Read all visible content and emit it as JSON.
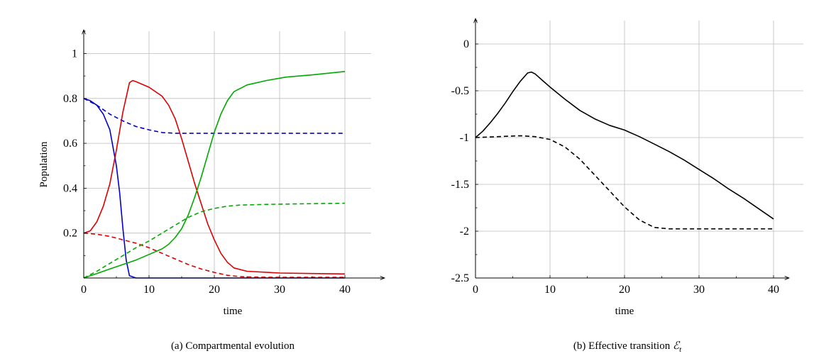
{
  "chart_data": [
    {
      "type": "line",
      "caption": "(a) Compartmental evolution",
      "xlabel": "time",
      "ylabel": "Population",
      "xlim": [
        0,
        44
      ],
      "ylim": [
        0,
        1.1
      ],
      "xticks": [
        0,
        10,
        20,
        30,
        40
      ],
      "yticks": [
        0.2,
        0.4,
        0.6,
        0.8,
        1
      ],
      "ytick_labels": [
        "0.2",
        "0.4",
        "0.6",
        "0.8",
        "1"
      ],
      "grid": true,
      "series": [
        {
          "color": "#0000cc",
          "dash": "solid",
          "points": [
            [
              0,
              0.8
            ],
            [
              1,
              0.79
            ],
            [
              2,
              0.77
            ],
            [
              3,
              0.73
            ],
            [
              4,
              0.66
            ],
            [
              5,
              0.5
            ],
            [
              5.5,
              0.38
            ],
            [
              6,
              0.22
            ],
            [
              6.5,
              0.08
            ],
            [
              7,
              0.01
            ],
            [
              8,
              0
            ],
            [
              40,
              0
            ]
          ]
        },
        {
          "color": "#0000cc",
          "dash": "dashed",
          "points": [
            [
              0,
              0.8
            ],
            [
              2,
              0.77
            ],
            [
              4,
              0.73
            ],
            [
              6,
              0.7
            ],
            [
              8,
              0.675
            ],
            [
              10,
              0.66
            ],
            [
              12,
              0.648
            ],
            [
              14,
              0.645
            ],
            [
              16,
              0.645
            ],
            [
              20,
              0.645
            ],
            [
              40,
              0.645
            ]
          ]
        },
        {
          "color": "#dd0000",
          "dash": "solid",
          "points": [
            [
              0,
              0.2
            ],
            [
              1,
              0.21
            ],
            [
              2,
              0.25
            ],
            [
              3,
              0.32
            ],
            [
              4,
              0.42
            ],
            [
              5,
              0.57
            ],
            [
              6,
              0.74
            ],
            [
              7,
              0.87
            ],
            [
              7.5,
              0.88
            ],
            [
              8,
              0.875
            ],
            [
              10,
              0.85
            ],
            [
              12,
              0.81
            ],
            [
              13,
              0.77
            ],
            [
              14,
              0.71
            ],
            [
              15,
              0.62
            ],
            [
              16,
              0.52
            ],
            [
              17,
              0.42
            ],
            [
              18,
              0.33
            ],
            [
              19,
              0.24
            ],
            [
              20,
              0.17
            ],
            [
              21,
              0.11
            ],
            [
              22,
              0.07
            ],
            [
              23,
              0.045
            ],
            [
              25,
              0.03
            ],
            [
              30,
              0.022
            ],
            [
              35,
              0.02
            ],
            [
              40,
              0.018
            ]
          ]
        },
        {
          "color": "#dd0000",
          "dash": "dashed",
          "points": [
            [
              0,
              0.2
            ],
            [
              2,
              0.195
            ],
            [
              4,
              0.185
            ],
            [
              6,
              0.17
            ],
            [
              8,
              0.155
            ],
            [
              10,
              0.135
            ],
            [
              12,
              0.11
            ],
            [
              14,
              0.085
            ],
            [
              16,
              0.06
            ],
            [
              18,
              0.04
            ],
            [
              20,
              0.025
            ],
            [
              22,
              0.012
            ],
            [
              24,
              0.006
            ],
            [
              26,
              0.004
            ],
            [
              30,
              0.003
            ],
            [
              40,
              0.003
            ]
          ]
        },
        {
          "color": "#00aa00",
          "dash": "solid",
          "points": [
            [
              0,
              0
            ],
            [
              2,
              0.02
            ],
            [
              4,
              0.04
            ],
            [
              6,
              0.06
            ],
            [
              8,
              0.08
            ],
            [
              10,
              0.105
            ],
            [
              12,
              0.13
            ],
            [
              13,
              0.15
            ],
            [
              14,
              0.18
            ],
            [
              15,
              0.22
            ],
            [
              16,
              0.28
            ],
            [
              17,
              0.36
            ],
            [
              18,
              0.45
            ],
            [
              19,
              0.55
            ],
            [
              20,
              0.65
            ],
            [
              21,
              0.73
            ],
            [
              22,
              0.79
            ],
            [
              23,
              0.83
            ],
            [
              25,
              0.86
            ],
            [
              28,
              0.88
            ],
            [
              31,
              0.895
            ],
            [
              35,
              0.905
            ],
            [
              40,
              0.92
            ]
          ]
        },
        {
          "color": "#00aa00",
          "dash": "dashed",
          "points": [
            [
              0,
              0
            ],
            [
              2,
              0.03
            ],
            [
              4,
              0.065
            ],
            [
              6,
              0.1
            ],
            [
              8,
              0.135
            ],
            [
              10,
              0.165
            ],
            [
              12,
              0.2
            ],
            [
              14,
              0.235
            ],
            [
              16,
              0.27
            ],
            [
              18,
              0.295
            ],
            [
              20,
              0.31
            ],
            [
              22,
              0.32
            ],
            [
              24,
              0.325
            ],
            [
              28,
              0.328
            ],
            [
              32,
              0.33
            ],
            [
              40,
              0.333
            ]
          ]
        }
      ]
    },
    {
      "type": "line",
      "caption_prefix": "(b) Effective transition ",
      "caption_symbol": "ℰ",
      "caption_sub": "t",
      "xlabel": "time",
      "ylabel": "",
      "xlim": [
        0,
        44
      ],
      "ylim": [
        -2.5,
        0.25
      ],
      "xticks": [
        0,
        10,
        20,
        30,
        40
      ],
      "yticks": [
        -2.5,
        -2,
        -1.5,
        -1,
        -0.5,
        0
      ],
      "ytick_labels": [
        "-2.5",
        "-2",
        "-1.5",
        "-1",
        "-0.5",
        "0"
      ],
      "grid": true,
      "series": [
        {
          "color": "#000000",
          "dash": "solid",
          "points": [
            [
              0,
              -1.0
            ],
            [
              1,
              -0.93
            ],
            [
              2,
              -0.84
            ],
            [
              3,
              -0.74
            ],
            [
              4,
              -0.63
            ],
            [
              5,
              -0.51
            ],
            [
              6,
              -0.4
            ],
            [
              7,
              -0.31
            ],
            [
              7.5,
              -0.3
            ],
            [
              8,
              -0.32
            ],
            [
              9,
              -0.39
            ],
            [
              10,
              -0.46
            ],
            [
              12,
              -0.59
            ],
            [
              14,
              -0.71
            ],
            [
              16,
              -0.8
            ],
            [
              18,
              -0.87
            ],
            [
              20,
              -0.92
            ],
            [
              22,
              -0.99
            ],
            [
              24,
              -1.07
            ],
            [
              26,
              -1.15
            ],
            [
              28,
              -1.24
            ],
            [
              30,
              -1.34
            ],
            [
              32,
              -1.44
            ],
            [
              34,
              -1.55
            ],
            [
              36,
              -1.65
            ],
            [
              38,
              -1.76
            ],
            [
              40,
              -1.87
            ]
          ]
        },
        {
          "color": "#000000",
          "dash": "dashed",
          "points": [
            [
              0,
              -1.0
            ],
            [
              3,
              -0.99
            ],
            [
              6,
              -0.98
            ],
            [
              8,
              -0.99
            ],
            [
              10,
              -1.02
            ],
            [
              12,
              -1.1
            ],
            [
              14,
              -1.23
            ],
            [
              16,
              -1.4
            ],
            [
              18,
              -1.57
            ],
            [
              20,
              -1.74
            ],
            [
              22,
              -1.88
            ],
            [
              24,
              -1.96
            ],
            [
              26,
              -1.975
            ],
            [
              30,
              -1.975
            ],
            [
              40,
              -1.975
            ]
          ]
        }
      ]
    }
  ]
}
